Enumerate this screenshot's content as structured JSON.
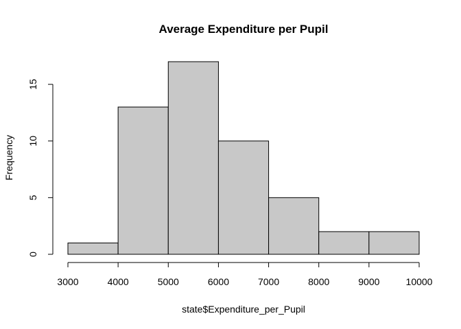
{
  "chart_data": {
    "type": "bar",
    "title": "Average Expenditure per Pupil",
    "xlabel": "state$Expenditure_per_Pupil",
    "ylabel": "Frequency",
    "bins": [
      {
        "start": 3000,
        "end": 4000,
        "count": 1
      },
      {
        "start": 4000,
        "end": 5000,
        "count": 13
      },
      {
        "start": 5000,
        "end": 6000,
        "count": 17
      },
      {
        "start": 6000,
        "end": 7000,
        "count": 10
      },
      {
        "start": 7000,
        "end": 8000,
        "count": 5
      },
      {
        "start": 8000,
        "end": 9000,
        "count": 2
      },
      {
        "start": 9000,
        "end": 10000,
        "count": 2
      }
    ],
    "xlim": [
      3000,
      10000
    ],
    "ylim": [
      0,
      17
    ],
    "x_ticks": [
      3000,
      4000,
      5000,
      6000,
      7000,
      8000,
      9000,
      10000
    ],
    "x_tick_labels": [
      "3000",
      "4000",
      "5000",
      "6000",
      "7000",
      "8000",
      "9000",
      "10000"
    ],
    "y_ticks": [
      0,
      5,
      10,
      15
    ],
    "y_tick_labels": [
      "0",
      "5",
      "10",
      "15"
    ],
    "grid": false,
    "bar_color": "#c8c8c8",
    "edge_color": "#000000"
  }
}
